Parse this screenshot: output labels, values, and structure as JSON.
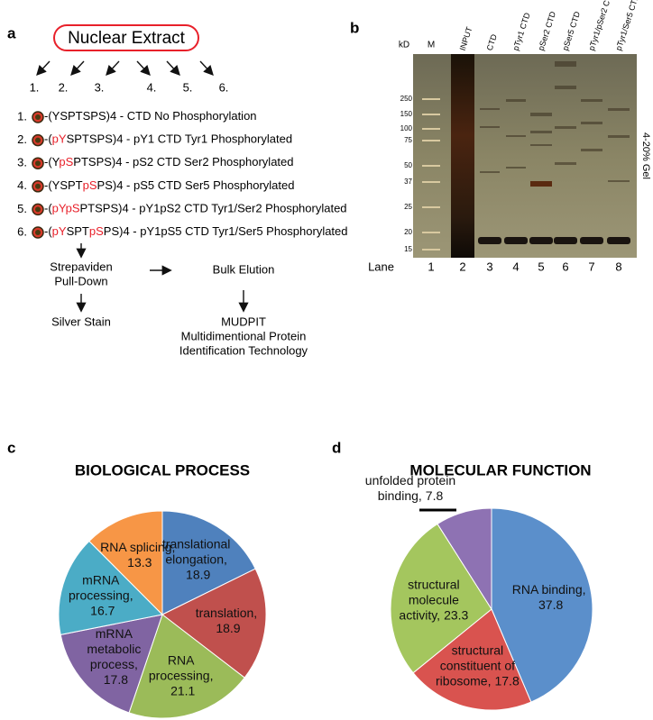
{
  "panel_a": {
    "label": "a",
    "source": "Nuclear Extract",
    "branches": [
      "1.",
      "2.",
      "3.",
      "4.",
      "5.",
      "6."
    ],
    "peptides": [
      {
        "number": "1.",
        "parts": [
          {
            "text": "-(YSPTSPS)4 - CTD No Phosphorylation"
          }
        ]
      },
      {
        "number": "2.",
        "parts": [
          {
            "text": "-("
          },
          {
            "text": "pY",
            "color": "#e8202a"
          },
          {
            "text": "SPTSPS)4 - pY1 CTD Tyr1 Phosphorylated"
          }
        ]
      },
      {
        "number": "3.",
        "parts": [
          {
            "text": "-(Y"
          },
          {
            "text": "pS",
            "color": "#e8202a"
          },
          {
            "text": "PTSPS)4 - pS2 CTD Ser2 Phosphorylated"
          }
        ]
      },
      {
        "number": "4.",
        "parts": [
          {
            "text": "-(YSPT"
          },
          {
            "text": "pS",
            "color": "#e8202a"
          },
          {
            "text": "PS)4 - pS5 CTD Ser5 Phosphorylated"
          }
        ]
      },
      {
        "number": "5.",
        "parts": [
          {
            "text": "-("
          },
          {
            "text": "pYpS",
            "color": "#e8202a"
          },
          {
            "text": "PTSPS)4 - pY1pS2 CTD Tyr1/Ser2 Phosphorylated"
          }
        ]
      },
      {
        "number": "6.",
        "parts": [
          {
            "text": "-("
          },
          {
            "text": "pY",
            "color": "#e8202a"
          },
          {
            "text": "SPT"
          },
          {
            "text": "pS",
            "color": "#e8202a"
          },
          {
            "text": "PS)4 - pY1pS5 CTD Tyr1/Ser5 Phosphorylated"
          }
        ]
      }
    ],
    "pulldown": [
      "Strepaviden",
      "Pull-Down"
    ],
    "elution": "Bulk Elution",
    "stain": "Silver Stain",
    "mudpit": [
      "MUDPIT",
      "Multidimentional Protein",
      "Identification Technology"
    ]
  },
  "panel_b": {
    "label": "b",
    "kd_label": "kD",
    "marker_label": "M",
    "lane_headers": [
      "INPUT",
      "CTD",
      "pTyr1 CTD",
      "pSer2 CTD",
      "pSer5 CTD",
      "pTyr1/pSer2 CTD",
      "pTyr1/Ser5 CTD"
    ],
    "markers": [
      "250",
      "150",
      "100",
      "75",
      "50",
      "37",
      "25",
      "20",
      "15"
    ],
    "lane_label": "Lane",
    "lane_numbers": [
      "1",
      "2",
      "3",
      "4",
      "5",
      "6",
      "7",
      "8"
    ],
    "gel_note": "4-20% Gel"
  },
  "chart_data": [
    {
      "type": "pie",
      "panel": "c",
      "title": "BIOLOGICAL PROCESS",
      "categories": [
        "translational elongation,",
        "translation,",
        "RNA processing,",
        "mRNA metabolic process,",
        "mRNA processing,",
        "RNA splicing,"
      ],
      "values": [
        18.9,
        18.9,
        21.1,
        17.8,
        16.7,
        13.3
      ],
      "colors": [
        "#4f81bd",
        "#c0504d",
        "#9bbb59",
        "#8064a2",
        "#4bacc6",
        "#f79646"
      ]
    },
    {
      "type": "pie",
      "panel": "d",
      "title": "MOLECULAR FUNCTION",
      "categories": [
        "RNA binding,",
        "structural constituent of ribosome,",
        "structural molecule activity,",
        "unfolded protein binding,"
      ],
      "values": [
        37.8,
        17.8,
        23.3,
        7.8
      ],
      "colors": [
        "#5b8fcb",
        "#d9534f",
        "#a4c65e",
        "#8e72b3"
      ]
    }
  ]
}
